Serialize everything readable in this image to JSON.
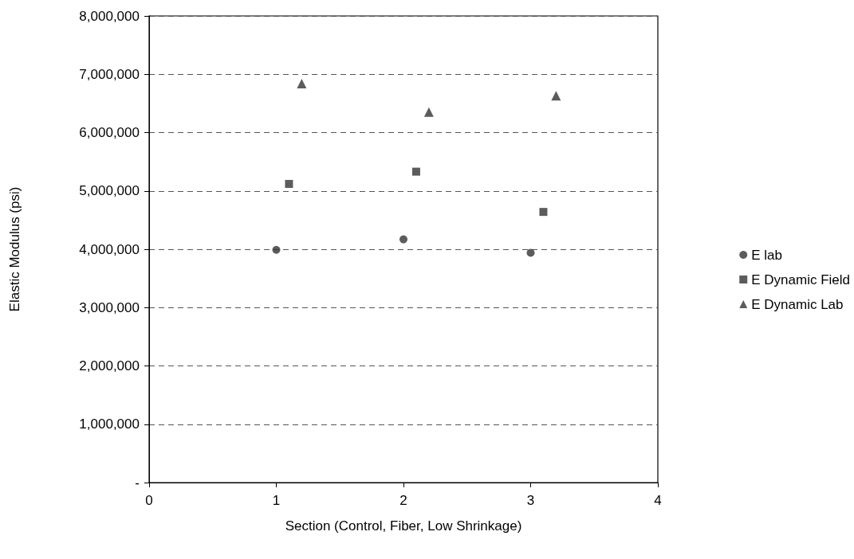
{
  "chart_data": {
    "type": "scatter",
    "xlabel": "Section (Control, Fiber, Low Shrinkage)",
    "ylabel": "Elastic Modulus (psi)",
    "series": [
      {
        "name": "E lab",
        "color": "#333333",
        "marker": "circle",
        "x": [
          1,
          2,
          3
        ],
        "values": [
          3990000,
          4170000,
          3940000
        ]
      },
      {
        "name": "E Dynamic Field",
        "color": "#333333",
        "marker": "square",
        "x": [
          1.1,
          2.1,
          3.1
        ],
        "values": [
          5120000,
          5330000,
          4640000
        ]
      },
      {
        "name": "E Dynamic Lab",
        "color": "#333333",
        "marker": "triangle",
        "x": [
          1.2,
          2.2,
          3.2
        ],
        "values": [
          6840000,
          6350000,
          6630000
        ]
      }
    ],
    "xlim": [
      0,
      4
    ],
    "xticks": [
      0,
      1,
      2,
      3,
      4
    ],
    "ylim": [
      0,
      8000000
    ],
    "yticks": [
      {
        "value": 0,
        "label": "-"
      },
      {
        "value": 1000000,
        "label": "1,000,000"
      },
      {
        "value": 2000000,
        "label": "2,000,000"
      },
      {
        "value": 3000000,
        "label": "3,000,000"
      },
      {
        "value": 4000000,
        "label": "4,000,000"
      },
      {
        "value": 5000000,
        "label": "5,000,000"
      },
      {
        "value": 6000000,
        "label": "6,000,000"
      },
      {
        "value": 7000000,
        "label": "7,000,000"
      },
      {
        "value": 8000000,
        "label": "8,000,000"
      }
    ],
    "grid": "y",
    "legend": "right"
  }
}
